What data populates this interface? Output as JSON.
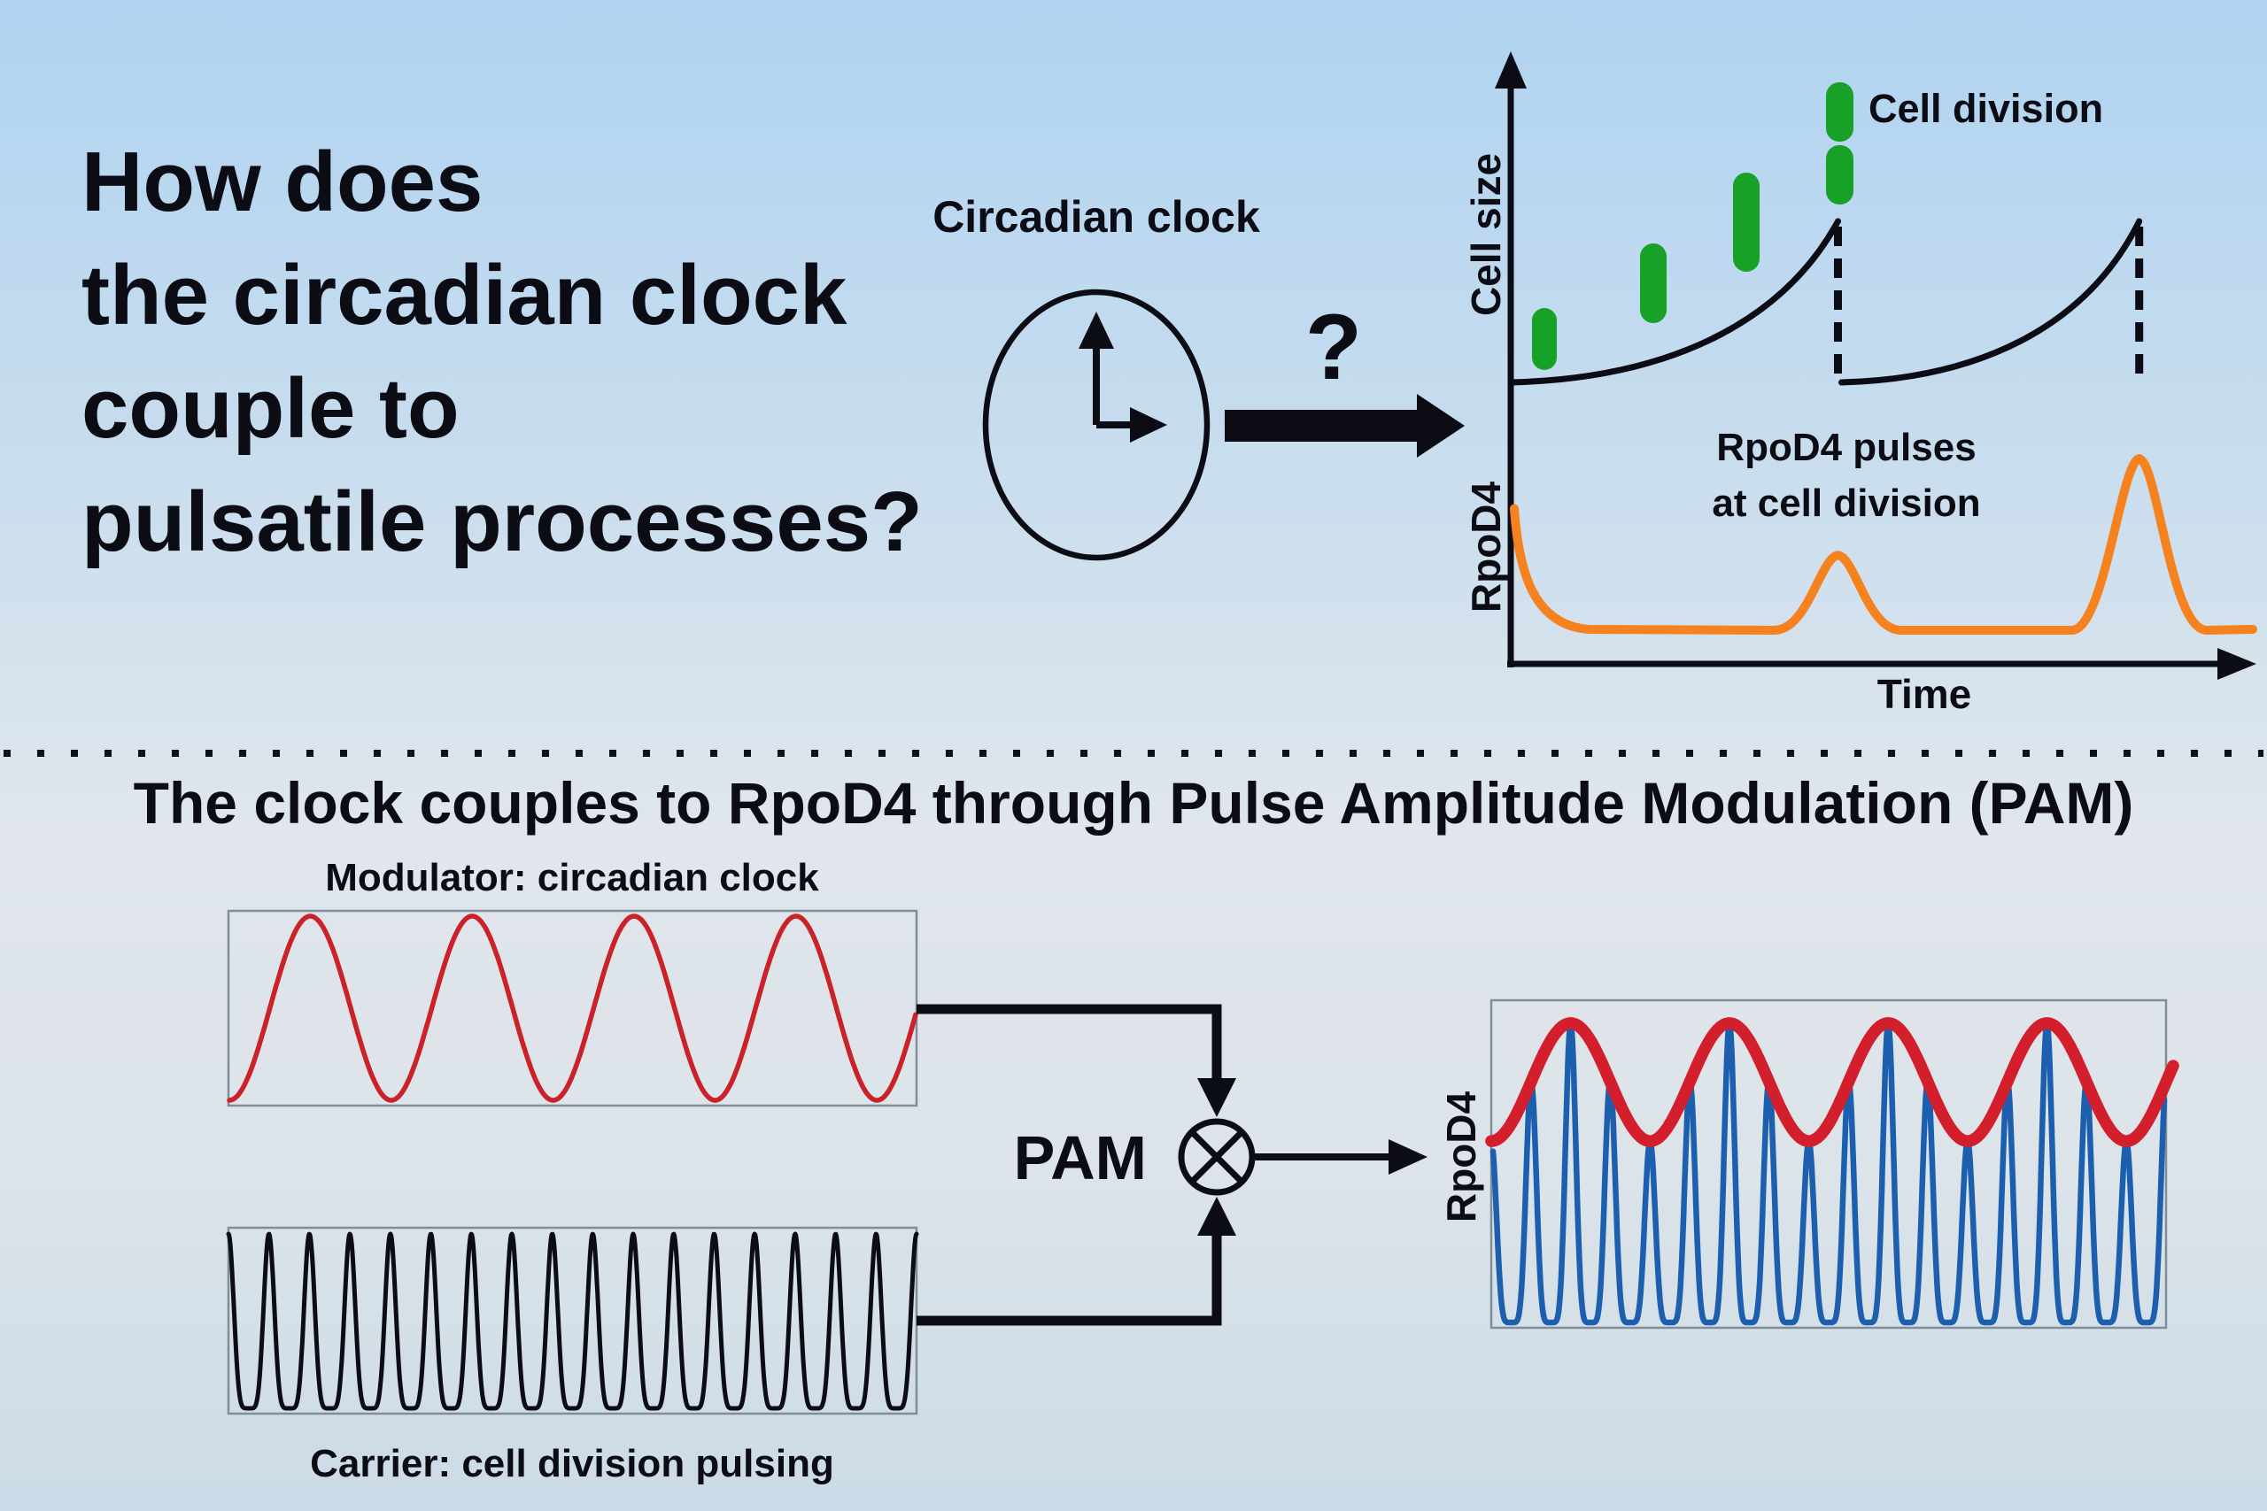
{
  "colors": {
    "background_top": "#b0d3f1",
    "background_upper_mid": "#c8ddee",
    "background_mid": "#e0e6eb",
    "background_lower_mid": "#dce3e9",
    "background_bottom": "#cbdbe7",
    "black": "#0c0c14",
    "red": "#cb2129",
    "red_envelope": "#d21f2b",
    "blue": "#1c5fae",
    "orange": "#f5821e",
    "green": "#18a127",
    "box_border": "#7f8e99"
  },
  "top": {
    "title_lines": [
      "How does",
      "the circadian clock",
      "couple to",
      "pulsatile processes?"
    ],
    "clock_label": "Circadian clock",
    "question_mark": "?",
    "chart_labels": {
      "y_top": "Cell size",
      "y_bottom": "RpoD4",
      "x": "Time",
      "cell_division": "Cell division",
      "annotation_line1": "RpoD4 pulses",
      "annotation_line2": "at cell division"
    }
  },
  "bottom": {
    "section_title": "The clock couples to RpoD4 through Pulse Amplitude Modulation (PAM)",
    "modulator_label": "Modulator: circadian clock",
    "carrier_label": "Carrier: cell division pulsing",
    "pam_label": "PAM",
    "output_y_label": "RpoD4"
  },
  "chart_data": [
    {
      "id": "cell-cycle-chart",
      "type": "line",
      "xlabel": "Time",
      "ylabels": [
        "Cell size",
        "RpoD4"
      ],
      "grid": false,
      "series": [
        {
          "name": "Cell size",
          "waveform": "exponential-growth-sawtooth",
          "color": "black",
          "division_times_frac": [
            0.443,
            0.851
          ],
          "min_rel": 0.3,
          "max_rel": 1.0
        },
        {
          "name": "RpoD4",
          "waveform": "pulses-at-cell-division",
          "color": "orange",
          "pulse_times_frac": [
            0.0,
            0.443,
            0.851
          ],
          "pulse_rel_heights": [
            0.71,
            0.44,
            1.0
          ]
        }
      ],
      "annotations": [
        "Cell division",
        "RpoD4 pulses at cell division"
      ],
      "cell_icon_count": 4,
      "cell_icon_rel_sizes": [
        0.35,
        0.45,
        0.55,
        0.7
      ],
      "last_cell_is_dividing": true
    },
    {
      "id": "modulator",
      "type": "line",
      "label": "Modulator: circadian clock",
      "waveform": "sine",
      "cycles": 4.25,
      "phase": "starts-at-minimum",
      "color": "red"
    },
    {
      "id": "carrier",
      "type": "line",
      "label": "Carrier: cell division pulsing",
      "waveform": "pulse-train",
      "num_pulses": 17,
      "pulse_sharpness": 6,
      "color": "black"
    },
    {
      "id": "pam-output",
      "type": "line",
      "label": "RpoD4",
      "series": [
        {
          "name": "Modulated RpoD4 pulses",
          "waveform": "pulse-train",
          "num_pulses": 17,
          "pulse_sharpness": 6,
          "color": "blue"
        },
        {
          "name": "Circadian envelope",
          "waveform": "sine",
          "cycles": 4.25,
          "color": "red"
        }
      ],
      "envelope_top_frac": 0.07,
      "envelope_min_frac": 0.43
    }
  ]
}
